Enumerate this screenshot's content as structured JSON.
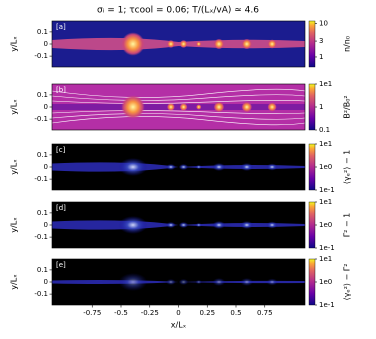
{
  "chart_data": [
    {
      "type": "heatmap",
      "title": "σᵢ = 1; τcool = 0.06; T/(Lₓ/vA) ≃ 4.6",
      "panel_label": "[a]",
      "ylabel": "y/Lₓ",
      "colorbar_label": "n/n₀",
      "xlim": [
        -1.1,
        1.1
      ],
      "ylim": [
        -0.19,
        0.19
      ],
      "yticks": [
        0.1,
        0.0,
        -0.1
      ],
      "clim": [
        0.5,
        12
      ],
      "log_color": true,
      "cticks": [
        10,
        3,
        1
      ],
      "colormap": "plasma"
    },
    {
      "type": "heatmap",
      "panel_label": "[b]",
      "ylabel": "y/Lₓ",
      "colorbar_label": "B²/B₀²",
      "xlim": [
        -1.1,
        1.1
      ],
      "ylim": [
        -0.19,
        0.19
      ],
      "yticks": [
        0.1,
        0.0,
        -0.1
      ],
      "clim": [
        0.1,
        10
      ],
      "log_color": true,
      "cticks": [
        {
          "value": 10,
          "label": "1e1"
        },
        1,
        0.1
      ],
      "colormap": "plasma"
    },
    {
      "type": "heatmap",
      "panel_label": "[c]",
      "ylabel": "y/Lₓ",
      "colorbar_label": "⟨γₑ²⟩ − 1",
      "xlim": [
        -1.1,
        1.1
      ],
      "ylim": [
        -0.19,
        0.19
      ],
      "yticks": [
        0.1,
        0.0,
        -0.1
      ],
      "clim": [
        0.1,
        10
      ],
      "log_color": true,
      "cticks": [
        {
          "value": 10,
          "label": "1e1"
        },
        {
          "value": 1,
          "label": "1e0"
        },
        {
          "value": 0.1,
          "label": "1e-1"
        }
      ],
      "colormap": "plasma"
    },
    {
      "type": "heatmap",
      "panel_label": "[d]",
      "ylabel": "y/Lₓ",
      "colorbar_label": "Γ² − 1",
      "xlim": [
        -1.1,
        1.1
      ],
      "ylim": [
        -0.19,
        0.19
      ],
      "yticks": [
        0.1,
        0.0,
        -0.1
      ],
      "clim": [
        0.1,
        10
      ],
      "log_color": true,
      "cticks": [
        {
          "value": 10,
          "label": "1e1"
        },
        {
          "value": 1,
          "label": "1e0"
        },
        {
          "value": 0.1,
          "label": "1e-1"
        }
      ],
      "colormap": "plasma"
    },
    {
      "type": "heatmap",
      "panel_label": "[e]",
      "ylabel": "y/Lₓ",
      "xlabel": "x/Lₓ",
      "colorbar_label": "⟨γₑ²⟩ − Γ²",
      "xlim": [
        -1.1,
        1.1
      ],
      "ylim": [
        -0.19,
        0.19
      ],
      "yticks": [
        0.1,
        0.0,
        -0.1
      ],
      "xticks": [
        -0.75,
        -0.5,
        -0.25,
        0,
        0.25,
        0.5,
        0.75
      ],
      "clim": [
        0.1,
        10
      ],
      "log_color": true,
      "cticks": [
        {
          "value": 10,
          "label": "1e1"
        },
        {
          "value": 1,
          "label": "1e0"
        },
        {
          "value": 0.1,
          "label": "1e-1"
        }
      ],
      "colormap": "plasma"
    }
  ]
}
